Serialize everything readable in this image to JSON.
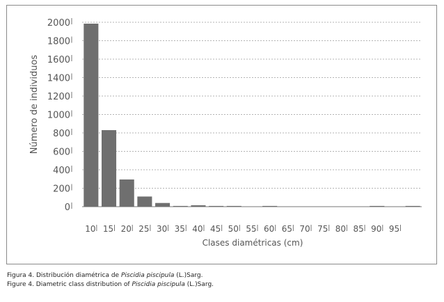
{
  "chart_data": {
    "type": "bar",
    "ylabel": "Número de individuos",
    "xlabel": "Clases diamétricas (cm)",
    "ylim": [
      0,
      2000
    ],
    "yticks": [
      0,
      200,
      400,
      600,
      800,
      1000,
      1200,
      1400,
      1600,
      1800,
      2000
    ],
    "grid": true,
    "categories": [
      "10",
      "15",
      "20",
      "25",
      "30",
      "35",
      "40",
      "45",
      "50",
      "55",
      "60",
      "65",
      "70",
      "75",
      "80",
      "85",
      "90",
      "95",
      ""
    ],
    "values": [
      1985,
      830,
      295,
      110,
      40,
      8,
      15,
      8,
      8,
      0,
      8,
      0,
      0,
      0,
      0,
      0,
      8,
      0,
      8
    ],
    "bar_color": "#6f6f6f"
  },
  "captions": {
    "line1_prefix": "Figura 4. Distribución diamétrica de ",
    "line1_species": "Piscidia piscipula",
    "line1_suffix": " (L.)Sarg.",
    "line2_prefix": "Figure 4. Diametric class distribution of ",
    "line2_species": "Piscidia piscipula",
    "line2_suffix": " (L.)Sarg."
  }
}
